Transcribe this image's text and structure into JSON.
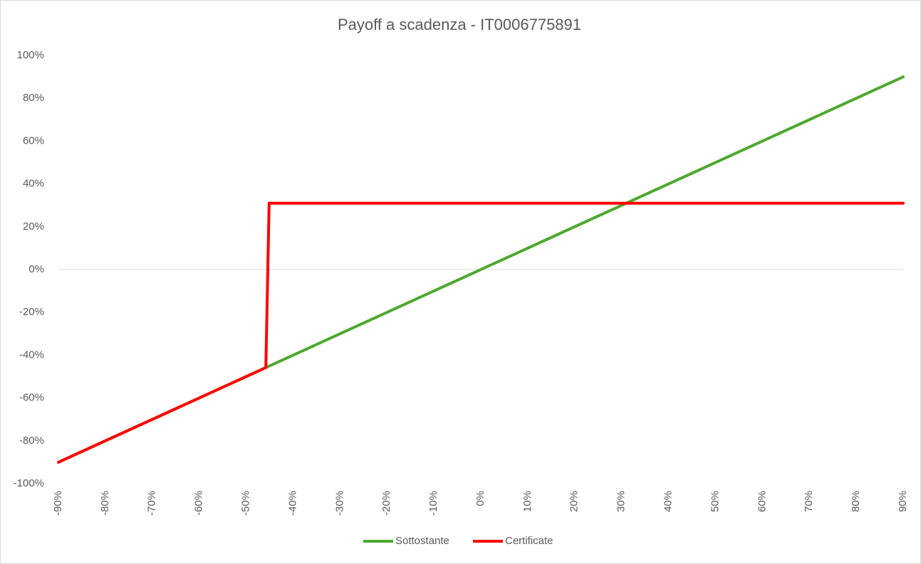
{
  "chart_data": {
    "type": "line",
    "title": "Payoff a scadenza - IT0006775891",
    "series": [
      {
        "name": "Sottostante",
        "color": "#4ea72e",
        "x": [
          -90,
          90
        ],
        "values": [
          -90,
          90
        ]
      },
      {
        "name": "Certificate",
        "color": "#ff0000",
        "x": [
          -90,
          -45.8,
          -45.1,
          90
        ],
        "values": [
          -90,
          -45.8,
          31,
          31
        ]
      }
    ],
    "xlim": [
      -90,
      90
    ],
    "xticks": [
      {
        "value": -90,
        "label": "-90%"
      },
      {
        "value": -80,
        "label": "-80%"
      },
      {
        "value": -70,
        "label": "-70%"
      },
      {
        "value": -60,
        "label": "-60%"
      },
      {
        "value": -50,
        "label": "-50%"
      },
      {
        "value": -40,
        "label": "-40%"
      },
      {
        "value": -30,
        "label": "-30%"
      },
      {
        "value": -20,
        "label": "-20%"
      },
      {
        "value": -10,
        "label": "-10%"
      },
      {
        "value": 0,
        "label": "0%"
      },
      {
        "value": 10,
        "label": "10%"
      },
      {
        "value": 20,
        "label": "20%"
      },
      {
        "value": 30,
        "label": "30%"
      },
      {
        "value": 40,
        "label": "40%"
      },
      {
        "value": 50,
        "label": "50%"
      },
      {
        "value": 60,
        "label": "60%"
      },
      {
        "value": 70,
        "label": "70%"
      },
      {
        "value": 80,
        "label": "80%"
      },
      {
        "value": 90,
        "label": "90%"
      }
    ],
    "ylim": [
      -100,
      100
    ],
    "yticks": [
      {
        "value": -100,
        "label": "-100%"
      },
      {
        "value": -80,
        "label": "-80%"
      },
      {
        "value": -60,
        "label": "-60%"
      },
      {
        "value": -40,
        "label": "-40%"
      },
      {
        "value": -20,
        "label": "-20%"
      },
      {
        "value": 0,
        "label": "0%"
      },
      {
        "value": 20,
        "label": "20%"
      },
      {
        "value": 40,
        "label": "40%"
      },
      {
        "value": 60,
        "label": "60%"
      },
      {
        "value": 80,
        "label": "80%"
      },
      {
        "value": 100,
        "label": "100%"
      }
    ],
    "legend": "bottom"
  }
}
